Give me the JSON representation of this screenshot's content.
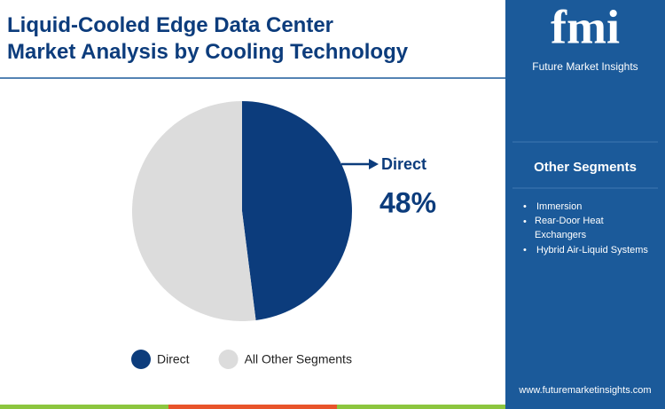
{
  "chart_data": {
    "type": "pie",
    "title": "Liquid-Cooled Edge Data Center Market Analysis by Cooling Technology",
    "categories": [
      "Direct",
      "All Other Segments"
    ],
    "values": [
      48,
      52
    ],
    "value_labels": [
      "48%",
      null
    ],
    "colors": [
      "#0c3c7c",
      "#dcdcdc"
    ],
    "legend": "bottom"
  },
  "sidebar": {
    "logo": "fmi",
    "brand": "Future Market Insights",
    "heading": "Other Segments",
    "items": [
      "Immersion",
      "Rear-Door Heat Exchangers",
      "Hybrid Air-Liquid Systems"
    ],
    "url": "www.futuremarketinsights.com"
  }
}
